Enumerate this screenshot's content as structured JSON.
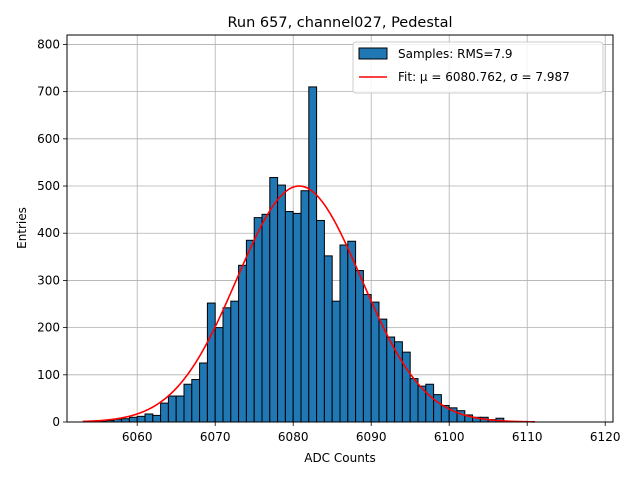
{
  "chart_data": {
    "type": "bar",
    "title": "Run 657, channel027, Pedestal",
    "xlabel": "ADC Counts",
    "ylabel": "Entries",
    "xlim": [
      6051,
      6121
    ],
    "ylim": [
      0,
      820
    ],
    "xticks": [
      6060,
      6070,
      6080,
      6090,
      6100,
      6110,
      6120
    ],
    "yticks": [
      0,
      100,
      200,
      300,
      400,
      500,
      600,
      700,
      800
    ],
    "grid": true,
    "legend_position": "top-right",
    "histogram": {
      "name": "Samples: RMS=7.9",
      "color": "#1f77b4",
      "edge_color": "#000000",
      "bin_width": 1,
      "bin_starts": [
        6055,
        6056,
        6057,
        6058,
        6059,
        6060,
        6061,
        6062,
        6063,
        6064,
        6065,
        6066,
        6067,
        6068,
        6069,
        6070,
        6071,
        6072,
        6073,
        6074,
        6075,
        6076,
        6077,
        6078,
        6079,
        6080,
        6081,
        6082,
        6083,
        6084,
        6085,
        6086,
        6087,
        6088,
        6089,
        6090,
        6091,
        6092,
        6093,
        6094,
        6095,
        6096,
        6097,
        6098,
        6099,
        6100,
        6101,
        6102,
        6103,
        6104,
        6105,
        6106,
        6107,
        6108
      ],
      "counts": [
        1,
        3,
        6,
        7,
        10,
        12,
        17,
        14,
        40,
        55,
        55,
        80,
        90,
        125,
        252,
        200,
        242,
        256,
        332,
        385,
        433,
        440,
        518,
        502,
        446,
        442,
        490,
        710,
        427,
        352,
        256,
        375,
        383,
        321,
        270,
        254,
        218,
        180,
        170,
        148,
        92,
        76,
        80,
        58,
        35,
        30,
        24,
        15,
        10,
        10,
        5,
        8,
        2,
        1
      ]
    },
    "fit": {
      "name": "Fit: μ = 6080.762, σ = 7.987",
      "color": "#ff0000",
      "mu": 6080.762,
      "sigma": 7.987,
      "peak": 500,
      "x_range": [
        6053,
        6111
      ]
    }
  }
}
